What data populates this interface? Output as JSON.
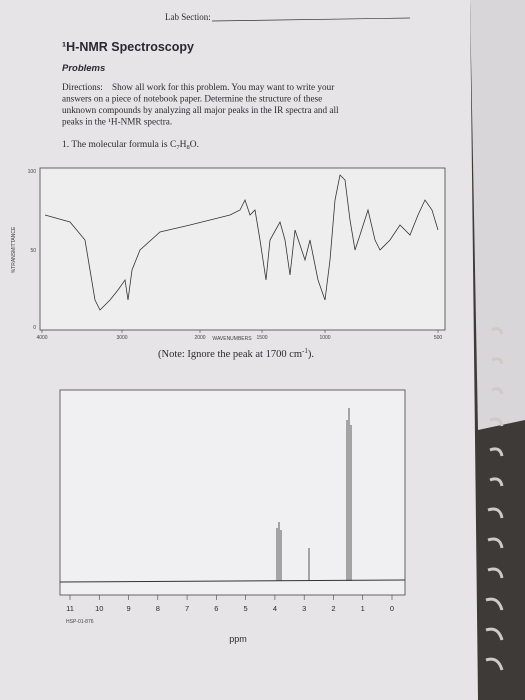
{
  "header": {
    "lab_section": "Lab Section:"
  },
  "title": "¹H-NMR Spectroscopy",
  "subtitle": "Problems",
  "directions": {
    "label": "Directions:",
    "lines": [
      "Show all work for this problem. You may want to write your",
      "answers on a piece of notebook paper. Determine the structure of these",
      "unknown compounds by analyzing all major peaks in the IR spectra and all",
      "peaks in the ¹H-NMR spectra."
    ]
  },
  "problem": {
    "text": "1. The molecular formula is",
    "formula": [
      "C",
      "7",
      "H",
      "8",
      "O",
      "."
    ]
  },
  "ir": {
    "x_ticks": [
      "4000",
      "3000",
      "2000",
      "1500",
      "1000",
      "500"
    ],
    "y_ticks": [
      "100",
      "50",
      "0"
    ],
    "x_label": "WAVENUMBERS",
    "y_label": "%TRANSMITTANCE"
  },
  "note": {
    "text": "(Note: Ignore the peak at 1700 cm",
    "sup": "-1",
    "end": ")."
  },
  "nmr": {
    "x_ticks": [
      "11",
      "10",
      "9",
      "8",
      "7",
      "6",
      "5",
      "4",
      "3",
      "2",
      "1",
      "0"
    ],
    "code": "HSP-01-876",
    "x_label": "ppm"
  }
}
